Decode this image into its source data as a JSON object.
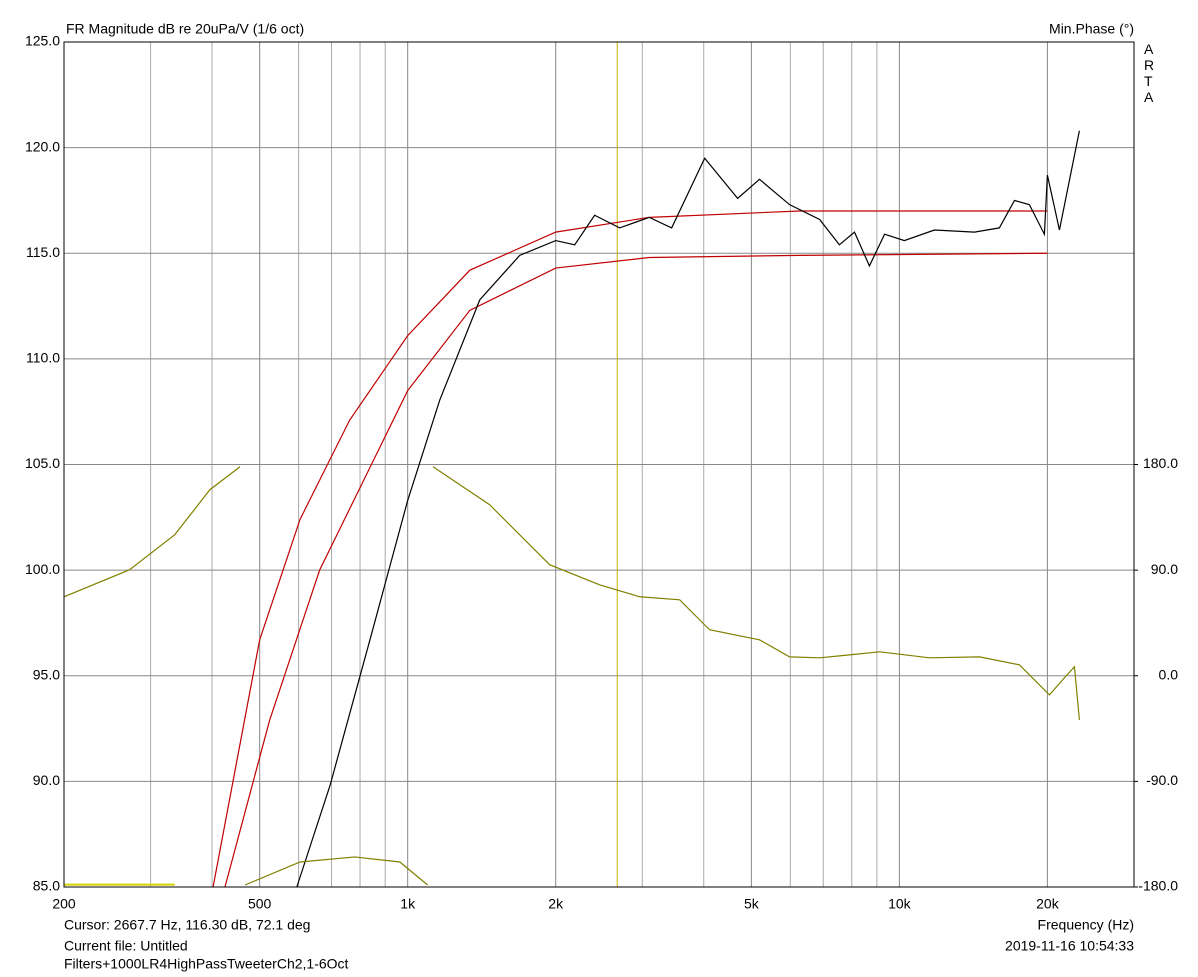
{
  "chart_data": {
    "type": "line",
    "title": "FR Magnitude dB re 20uPa/V (1/6 oct)",
    "y2_label": "Min.Phase (°)",
    "brand": "ARTA",
    "x_label": "Frequency (Hz)",
    "cursor_text": "Cursor: 2667.7 Hz, 116.30 dB, 72.1 deg",
    "cursor_x": 2667.7,
    "file_text": "Current file: Untitled",
    "file_name": "Filters+1000LR4HighPassTweeterCh2,1-6Oct",
    "timestamp": "2019-11-16  10:54:33",
    "xscale": "log",
    "grid": true,
    "xlim": [
      200,
      30000
    ],
    "ylim": [
      85,
      125
    ],
    "y2lim": [
      -180,
      540
    ],
    "xticks": [
      200,
      500,
      {
        "value": 1000,
        "label": "1k"
      },
      {
        "value": 2000,
        "label": "2k"
      },
      {
        "value": 5000,
        "label": "5k"
      },
      {
        "value": 10000,
        "label": "10k"
      },
      {
        "value": 20000,
        "label": "20k"
      }
    ],
    "xminor": [
      300,
      400,
      600,
      700,
      800,
      900,
      3000,
      4000,
      6000,
      7000,
      8000,
      9000
    ],
    "yticks": [
      {
        "value": 85,
        "label": "85.0"
      },
      {
        "value": 90,
        "label": "90.0"
      },
      {
        "value": 95,
        "label": "95.0"
      },
      {
        "value": 100,
        "label": "100.0"
      },
      {
        "value": 105,
        "label": "105.0"
      },
      {
        "value": 110,
        "label": "110.0"
      },
      {
        "value": 115,
        "label": "115.0"
      },
      {
        "value": 120,
        "label": "120.0"
      },
      {
        "value": 125,
        "label": "125.0"
      }
    ],
    "y2ticks": [
      {
        "value": -180,
        "label": "-180.0"
      },
      {
        "value": -90,
        "label": "-90.0"
      },
      {
        "value": 0,
        "label": "0.0"
      },
      {
        "value": 90,
        "label": "90.0"
      },
      {
        "value": 180,
        "label": "180.0"
      }
    ],
    "series": [
      {
        "color": "#c00000",
        "x": [
          402,
          500,
          604,
          762,
          1000,
          1338,
          2000,
          3100,
          6264,
          20000
        ],
        "values": [
          85,
          96.7,
          102.4,
          107.1,
          111.1,
          114.2,
          116.0,
          116.7,
          117.0,
          117.0
        ]
      },
      {
        "color": "#c00000",
        "x": [
          425,
          524,
          662,
          1000,
          1338,
          2000,
          3100,
          6264,
          20000
        ],
        "values": [
          85,
          92.9,
          100.0,
          108.5,
          112.3,
          114.3,
          114.8,
          114.9,
          115.0
        ]
      },
      {
        "color": "#000000",
        "x": [
          595,
          695,
          838,
          1000,
          1162,
          1402,
          1690,
          2000,
          2186,
          2400,
          2698,
          3100,
          3442,
          4018,
          4689,
          5194,
          5980,
          6884,
          7550,
          8104,
          8690,
          9330,
          10236,
          11780,
          14210,
          15970,
          17140,
          18380,
          19720,
          20000,
          21160,
          23230
        ],
        "values": [
          85,
          89.8,
          96.7,
          103.3,
          108.05,
          112.8,
          114.9,
          115.6,
          115.4,
          116.8,
          116.2,
          116.7,
          116.2,
          119.5,
          117.6,
          118.5,
          117.3,
          116.6,
          115.4,
          116.0,
          114.4,
          115.9,
          115.6,
          116.1,
          116.0,
          116.2,
          117.5,
          117.3,
          115.9,
          118.7,
          116.1,
          120.8
        ]
      },
      {
        "color": "#808000",
        "axis": "y2",
        "x": [
          200,
          272,
          336,
          396,
          456,
          null,
          467,
          604,
          780,
          964,
          1098,
          null,
          1126,
          1468,
          1944,
          2456,
          2966,
          3574,
          4110,
          5194,
          5980,
          6884,
          7920,
          9110,
          11510,
          14560,
          17540,
          20190,
          21650,
          22700,
          23230
        ],
        "values": [
          67.3,
          90.3,
          120.2,
          158.5,
          178.1,
          null,
          -178.3,
          -158.7,
          -154.4,
          -158.7,
          -178.3,
          null,
          178.1,
          145.7,
          94.6,
          77.5,
          67.3,
          64.7,
          39.2,
          30.6,
          16.1,
          15.3,
          17.8,
          20.4,
          15.3,
          16.1,
          9.3,
          -16.3,
          -1.8,
          7.6,
          -37.6
        ]
      },
      {
        "color": "#d4d400",
        "axis": "y2",
        "x": [
          200,
          336
        ],
        "values": [
          -178,
          -178
        ]
      }
    ]
  }
}
